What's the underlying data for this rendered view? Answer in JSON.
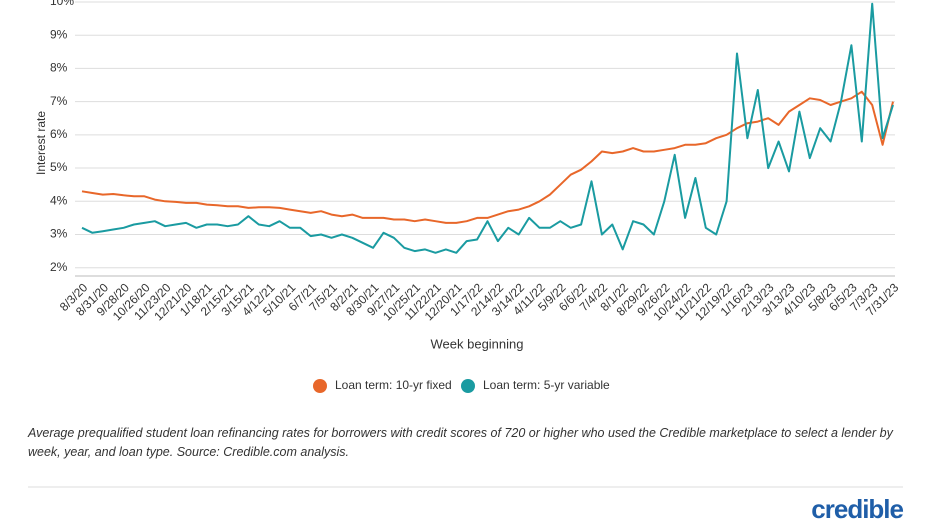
{
  "chart_data": {
    "type": "line",
    "y_label": "Interest rate",
    "x_label": "Week beginning",
    "categories": [
      "8/3/20",
      null,
      "8/31/20",
      null,
      "9/28/20",
      null,
      "10/26/20",
      null,
      "11/23/20",
      null,
      "12/21/20",
      null,
      "1/18/21",
      null,
      "2/15/21",
      null,
      "3/15/21",
      null,
      "4/12/21",
      null,
      "5/10/21",
      null,
      "6/7/21",
      null,
      "7/5/21",
      null,
      "8/2/21",
      null,
      "8/30/21",
      null,
      "9/27/21",
      null,
      "10/25/21",
      null,
      "11/22/21",
      null,
      "12/20/21",
      null,
      "1/17/22",
      null,
      "2/14/22",
      null,
      "3/14/22",
      null,
      "4/11/22",
      null,
      "5/9/22",
      null,
      "6/6/22",
      null,
      "7/4/22",
      null,
      "8/1/22",
      null,
      "8/29/22",
      null,
      "9/26/22",
      null,
      "10/24/22",
      null,
      "11/21/22",
      null,
      "12/19/22",
      null,
      "1/16/23",
      null,
      "2/13/23",
      null,
      "3/13/23",
      null,
      "4/10/23",
      null,
      "5/8/23",
      null,
      "6/5/23",
      null,
      "7/3/23",
      null,
      "7/31/23"
    ],
    "series": [
      {
        "name": "Loan term: 10-yr fixed",
        "color": "#e8672a",
        "values": [
          4.3,
          4.25,
          4.2,
          4.22,
          4.18,
          4.15,
          4.15,
          4.05,
          4.0,
          3.98,
          3.95,
          3.95,
          3.9,
          3.88,
          3.85,
          3.85,
          3.8,
          3.82,
          3.82,
          3.8,
          3.75,
          3.7,
          3.65,
          3.7,
          3.6,
          3.55,
          3.6,
          3.5,
          3.5,
          3.5,
          3.45,
          3.45,
          3.4,
          3.45,
          3.4,
          3.35,
          3.35,
          3.4,
          3.5,
          3.5,
          3.6,
          3.7,
          3.75,
          3.85,
          4.0,
          4.2,
          4.5,
          4.8,
          4.95,
          5.2,
          5.5,
          5.45,
          5.5,
          5.6,
          5.5,
          5.5,
          5.55,
          5.6,
          5.7,
          5.7,
          5.75,
          5.9,
          6.0,
          6.2,
          6.35,
          6.4,
          6.5,
          6.3,
          6.7,
          6.9,
          7.1,
          7.05,
          6.9,
          7.0,
          7.1,
          7.3,
          6.9,
          5.7,
          7.0
        ]
      },
      {
        "name": "Loan term: 5-yr variable",
        "color": "#1a9ba1",
        "values": [
          3.2,
          3.05,
          3.1,
          3.15,
          3.2,
          3.3,
          3.35,
          3.4,
          3.25,
          3.3,
          3.35,
          3.2,
          3.3,
          3.3,
          3.25,
          3.3,
          3.55,
          3.3,
          3.25,
          3.4,
          3.2,
          3.2,
          2.95,
          3.0,
          2.9,
          3.0,
          2.9,
          2.75,
          2.6,
          3.05,
          2.9,
          2.6,
          2.5,
          2.55,
          2.45,
          2.55,
          2.45,
          2.8,
          2.85,
          3.4,
          2.8,
          3.2,
          3.0,
          3.5,
          3.2,
          3.2,
          3.4,
          3.2,
          3.3,
          4.6,
          3.0,
          3.3,
          2.55,
          3.4,
          3.3,
          3.0,
          4.0,
          5.4,
          3.5,
          4.7,
          3.2,
          3.0,
          4.0,
          8.45,
          5.9,
          7.35,
          5.0,
          5.8,
          4.9,
          6.7,
          5.3,
          6.2,
          5.8,
          7.0,
          8.7,
          5.8,
          9.95,
          5.9,
          6.9
        ]
      }
    ],
    "ylim": [
      1.75,
      10
    ],
    "yticks": [
      {
        "value": 2,
        "label": "2%"
      },
      {
        "value": 3,
        "label": "3%"
      },
      {
        "value": 4,
        "label": "4%"
      },
      {
        "value": 5,
        "label": "5%"
      },
      {
        "value": 6,
        "label": "6%"
      },
      {
        "value": 7,
        "label": "7%"
      },
      {
        "value": 8,
        "label": "8%"
      },
      {
        "value": 9,
        "label": "9%"
      },
      {
        "value": 10,
        "label": "10%"
      }
    ],
    "grid": true,
    "legend": "bottom",
    "footnote": "Average prequalified student loan refinancing rates for borrowers with credit scores of 720 or higher who used the Credible marketplace to select a lender by week, year, and loan type. Source: Credible.com analysis.",
    "brand": "credible"
  }
}
